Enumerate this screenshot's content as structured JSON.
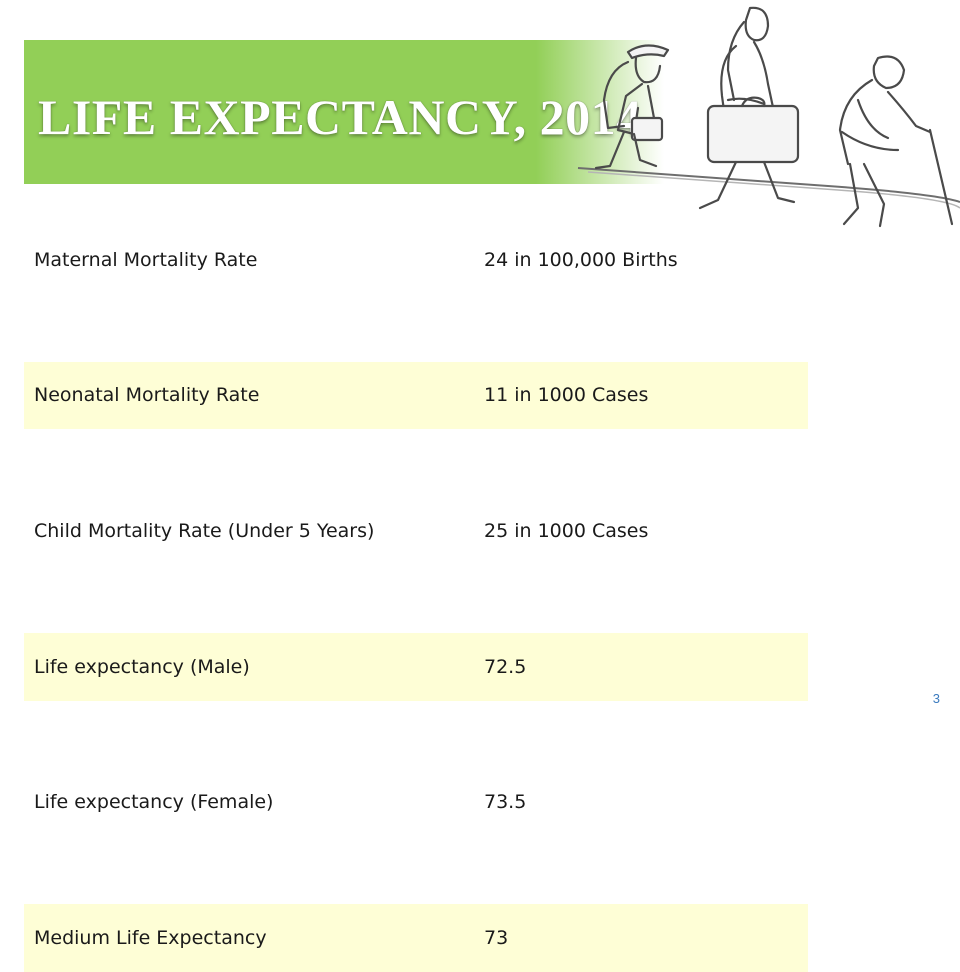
{
  "slide": {
    "title": "Life Expectancy, 2014",
    "page_number": "3"
  },
  "rows": [
    {
      "label": "Maternal Mortality Rate",
      "value": "24 in 100,000 Births"
    },
    {
      "label": "Neonatal Mortality Rate",
      "value": "11 in 1000 Cases"
    },
    {
      "label": "Child Mortality Rate (Under 5 Years)",
      "value": "25 in 1000 Cases"
    },
    {
      "label": "Life expectancy (Male)",
      "value": "72.5"
    },
    {
      "label": "Life expectancy (Female)",
      "value": "73.5"
    },
    {
      "label": "Medium Life Expectancy",
      "value": "73"
    }
  ],
  "colors": {
    "banner": "#92cf57",
    "row_band": "#fefed6",
    "page_number": "#3b7bbf"
  }
}
